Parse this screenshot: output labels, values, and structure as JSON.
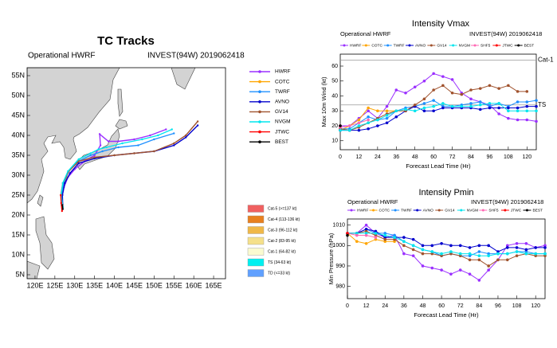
{
  "chart_data": [
    {
      "type": "track",
      "title": "TC Tracks",
      "subtitles": [
        "Operational HWRF",
        "INVEST(94W) 2019062418"
      ],
      "xlim": [
        118,
        168
      ],
      "ylim": [
        4,
        57
      ],
      "xticks": [
        {
          "value": 120,
          "label": "120E"
        },
        {
          "value": 125,
          "label": "125E"
        },
        {
          "value": 130,
          "label": "130E"
        },
        {
          "value": 135,
          "label": "135E"
        },
        {
          "value": 140,
          "label": "140E"
        },
        {
          "value": 145,
          "label": "145E"
        },
        {
          "value": 150,
          "label": "150E"
        },
        {
          "value": 155,
          "label": "155E"
        },
        {
          "value": 160,
          "label": "160E"
        },
        {
          "value": 165,
          "label": "165E"
        }
      ],
      "yticks": [
        {
          "value": 5,
          "label": "5N"
        },
        {
          "value": 10,
          "label": "10N"
        },
        {
          "value": 15,
          "label": "15N"
        },
        {
          "value": 20,
          "label": "20N"
        },
        {
          "value": 25,
          "label": "25N"
        },
        {
          "value": 30,
          "label": "30N"
        },
        {
          "value": 35,
          "label": "35N"
        },
        {
          "value": 40,
          "label": "40N"
        },
        {
          "value": 45,
          "label": "45N"
        },
        {
          "value": 50,
          "label": "50N"
        },
        {
          "value": 55,
          "label": "55N"
        }
      ],
      "legend": "right",
      "series": [
        {
          "name": "HWRF",
          "color": "#9b30ff",
          "x": [
            127,
            126.8,
            127.3,
            128.3,
            130,
            132.5,
            135,
            136.5,
            136.3,
            138.5,
            141,
            145,
            149,
            153
          ],
          "values": [
            22,
            24.5,
            27,
            29.5,
            31.5,
            33.5,
            35,
            37.5,
            40.3,
            38.5,
            38.5,
            39,
            40,
            41.5
          ]
        },
        {
          "name": "COTC",
          "color": "#ffa500",
          "x": [
            127,
            126.8,
            127.2,
            128
          ],
          "values": [
            22,
            24.5,
            27,
            29.5
          ]
        },
        {
          "name": "TWRF",
          "color": "#1e90ff",
          "x": [
            127,
            126.7,
            127.2,
            128.5,
            131,
            134,
            137,
            141,
            146,
            150,
            155
          ],
          "values": [
            22,
            25,
            28,
            31,
            33.5,
            35,
            36,
            37,
            37.5,
            39,
            40.5
          ]
        },
        {
          "name": "AVNO",
          "color": "#0000cd",
          "x": [
            127,
            126.9,
            127.5,
            128.8,
            131,
            135,
            140,
            145,
            150,
            155,
            158,
            161
          ],
          "values": [
            22,
            25,
            28,
            30.5,
            33,
            34.2,
            35,
            35.5,
            36,
            37.5,
            39.5,
            42.5
          ]
        },
        {
          "name": "GV14",
          "color": "#a0522d",
          "x": [
            127,
            126.5,
            127,
            128.5,
            131,
            135,
            140,
            145,
            150,
            155,
            158,
            161
          ],
          "values": [
            22,
            25,
            28,
            31,
            33.5,
            34.5,
            35,
            35.5,
            36,
            38,
            40,
            43.5
          ]
        },
        {
          "name": "NVGM",
          "color": "#00e5ee",
          "x": [
            127,
            126.6,
            127,
            128.3,
            131,
            134,
            136,
            138,
            142,
            147,
            151,
            154.5
          ],
          "values": [
            22,
            25,
            28,
            31,
            34,
            35.5,
            36.5,
            37,
            38,
            39,
            40,
            41.5
          ]
        },
        {
          "name": "JTWC",
          "color": "#ff0000",
          "x": [
            126.8,
            126.6,
            126.5
          ],
          "values": [
            21,
            23,
            25
          ]
        },
        {
          "name": "BEST",
          "color": "#000000",
          "x": [
            127,
            126.9
          ],
          "values": [
            21.5,
            22.5
          ]
        }
      ],
      "intensity_legend": [
        {
          "label": "Cat-5 (>=137 kt)",
          "color": "#f06060"
        },
        {
          "label": "Cat-4 (113-136 kt)",
          "color": "#e8801f"
        },
        {
          "label": "Cat-3 (96-112 kt)",
          "color": "#f0b848"
        },
        {
          "label": "Cat-2 (83-95 kt)",
          "color": "#f5e08a"
        },
        {
          "label": "Cat-1 (64-82 kt)",
          "color": "#fafad0"
        },
        {
          "label": "TS (34-63 kt)",
          "color": "#00f0f0"
        },
        {
          "label": "TD (<=33 kt)",
          "color": "#60a0ff"
        }
      ]
    },
    {
      "type": "line",
      "title": "Intensity Vmax",
      "subtitles": [
        "Operational HWRF",
        "INVEST(94W) 2019062418"
      ],
      "xlabel": "Forecast Lead Time (Hr)",
      "ylabel": "Max 10m Wind (kt)",
      "x": [
        0,
        6,
        12,
        18,
        24,
        30,
        36,
        42,
        48,
        54,
        60,
        66,
        72,
        78,
        84,
        90,
        96,
        102,
        108,
        114,
        120,
        126
      ],
      "xlim": [
        0,
        126
      ],
      "ylim": [
        4,
        68
      ],
      "xticks": [
        0,
        12,
        24,
        36,
        48,
        60,
        72,
        84,
        96,
        108,
        120
      ],
      "yticks": [
        10,
        20,
        30,
        40,
        50,
        60
      ],
      "reference_lines": [
        {
          "value": 64,
          "label": "Cat-1"
        },
        {
          "value": 34,
          "label": "TS"
        }
      ],
      "legend": "top",
      "series": [
        {
          "name": "HWRF",
          "color": "#9b30ff",
          "values": [
            20,
            20,
            25,
            30,
            25,
            33,
            44,
            42,
            46,
            50,
            55,
            53,
            51,
            42,
            38,
            36,
            34,
            28,
            25,
            24,
            24,
            23
          ]
        },
        {
          "name": "COTC",
          "color": "#ffa500",
          "values": [
            17,
            20,
            24,
            32,
            30,
            30,
            30,
            null,
            null,
            null,
            null,
            null,
            null,
            null,
            null,
            null,
            null,
            null,
            null,
            null,
            null,
            null
          ]
        },
        {
          "name": "TWRF",
          "color": "#1e90ff",
          "values": [
            18,
            18,
            22,
            26,
            24,
            25,
            30,
            32,
            33,
            35,
            37,
            33,
            33,
            34,
            35,
            36,
            33,
            35,
            33,
            36,
            36,
            37
          ]
        },
        {
          "name": "AVNO",
          "color": "#0000cd",
          "values": [
            17,
            17,
            17,
            18,
            20,
            22,
            26,
            30,
            33,
            30,
            30,
            32,
            32,
            32,
            32,
            31,
            32,
            32,
            32,
            32,
            33,
            33
          ]
        },
        {
          "name": "GV14",
          "color": "#a0522d",
          "values": [
            18,
            17,
            19,
            22,
            25,
            28,
            30,
            30,
            34,
            38,
            44,
            47,
            42,
            41,
            44,
            45,
            47,
            45,
            47,
            43,
            43,
            null
          ]
        },
        {
          "name": "NVGM",
          "color": "#00e5ee",
          "values": [
            17,
            17,
            20,
            22,
            24,
            27,
            30,
            31,
            30,
            32,
            33,
            35,
            33,
            33,
            33,
            34,
            35,
            35,
            30,
            30,
            30,
            30
          ]
        },
        {
          "name": "SHF5",
          "color": "#ff69b4",
          "values": [
            19,
            20,
            22,
            24,
            null,
            null,
            null,
            null,
            null,
            null,
            null,
            null,
            null,
            null,
            null,
            null,
            null,
            null,
            null,
            null,
            null,
            null
          ]
        },
        {
          "name": "JTWC",
          "color": "#ff0000",
          "values": [
            20,
            null,
            null,
            null,
            null,
            null,
            null,
            null,
            null,
            null,
            null,
            null,
            null,
            null,
            null,
            null,
            null,
            null,
            null,
            null,
            null,
            null
          ]
        },
        {
          "name": "BEST",
          "color": "#000000",
          "values": [
            20,
            null,
            null,
            null,
            null,
            null,
            null,
            null,
            null,
            null,
            null,
            null,
            null,
            null,
            null,
            null,
            null,
            null,
            null,
            null,
            null,
            null
          ]
        }
      ]
    },
    {
      "type": "line",
      "title": "Intensity Pmin",
      "subtitles": [
        "Operational HWRF",
        "INVEST(94W) 2019062418"
      ],
      "xlabel": "Forecast Lead Time (Hr)",
      "ylabel": "Min Pressure (hPa)",
      "x": [
        0,
        6,
        12,
        18,
        24,
        30,
        36,
        42,
        48,
        54,
        60,
        66,
        72,
        78,
        84,
        90,
        96,
        102,
        108,
        114,
        120,
        126
      ],
      "xlim": [
        0,
        126
      ],
      "ylim": [
        974,
        1013
      ],
      "xticks": [
        0,
        12,
        24,
        36,
        48,
        60,
        72,
        84,
        96,
        108,
        120
      ],
      "yticks": [
        980,
        990,
        1000,
        1010
      ],
      "legend": "top",
      "series": [
        {
          "name": "HWRF",
          "color": "#9b30ff",
          "values": [
            1006,
            1006,
            1010,
            1006,
            1004,
            1005,
            996,
            995,
            990,
            989,
            988,
            986,
            988,
            986,
            983,
            988,
            993,
            1000,
            1001,
            1001,
            999,
            1000
          ]
        },
        {
          "name": "COTC",
          "color": "#ffa500",
          "values": [
            1006,
            1002,
            1001,
            1003,
            1002,
            1002,
            null,
            null,
            null,
            null,
            null,
            null,
            null,
            null,
            null,
            null,
            null,
            null,
            null,
            null,
            null,
            null
          ]
        },
        {
          "name": "TWRF",
          "color": "#1e90ff",
          "values": [
            1006,
            1006,
            1008,
            1006,
            1006,
            1005,
            1002,
            1000,
            998,
            997,
            995,
            996,
            995,
            995,
            997,
            996,
            996,
            996,
            997,
            997,
            996,
            996
          ]
        },
        {
          "name": "AVNO",
          "color": "#0000cd",
          "values": [
            1006,
            1006,
            1008,
            1007,
            1004,
            1004,
            1004,
            1003,
            1000,
            1000,
            1001,
            1000,
            1000,
            999,
            1000,
            1000,
            997,
            999,
            999,
            998,
            999,
            999
          ]
        },
        {
          "name": "GV14",
          "color": "#a0522d",
          "values": [
            1006,
            1006,
            1007,
            1005,
            1003,
            1003,
            1000,
            998,
            996,
            996,
            995,
            996,
            995,
            993,
            993,
            990,
            993,
            993,
            995,
            996,
            995,
            995
          ]
        },
        {
          "name": "NVGM",
          "color": "#00e5ee",
          "values": [
            1006,
            1006,
            1006,
            1006,
            1005,
            1004,
            1002,
            1000,
            998,
            997,
            996,
            997,
            996,
            996,
            995,
            995,
            996,
            996,
            997,
            996,
            996,
            996
          ]
        },
        {
          "name": "SHF5",
          "color": "#ff69b4",
          "values": [
            1006,
            1005,
            1005,
            1004,
            null,
            null,
            null,
            null,
            null,
            null,
            null,
            null,
            null,
            null,
            null,
            null,
            null,
            null,
            null,
            null,
            null,
            null
          ]
        },
        {
          "name": "JTWC",
          "color": "#ff0000",
          "values": [
            1006,
            null,
            null,
            null,
            null,
            null,
            null,
            null,
            null,
            null,
            null,
            null,
            null,
            null,
            null,
            null,
            null,
            null,
            null,
            null,
            null,
            null
          ]
        },
        {
          "name": "BEST",
          "color": "#000000",
          "values": [
            1005,
            null,
            null,
            null,
            null,
            null,
            null,
            null,
            null,
            null,
            null,
            null,
            null,
            null,
            null,
            null,
            null,
            null,
            null,
            null,
            null,
            null
          ]
        }
      ]
    }
  ]
}
